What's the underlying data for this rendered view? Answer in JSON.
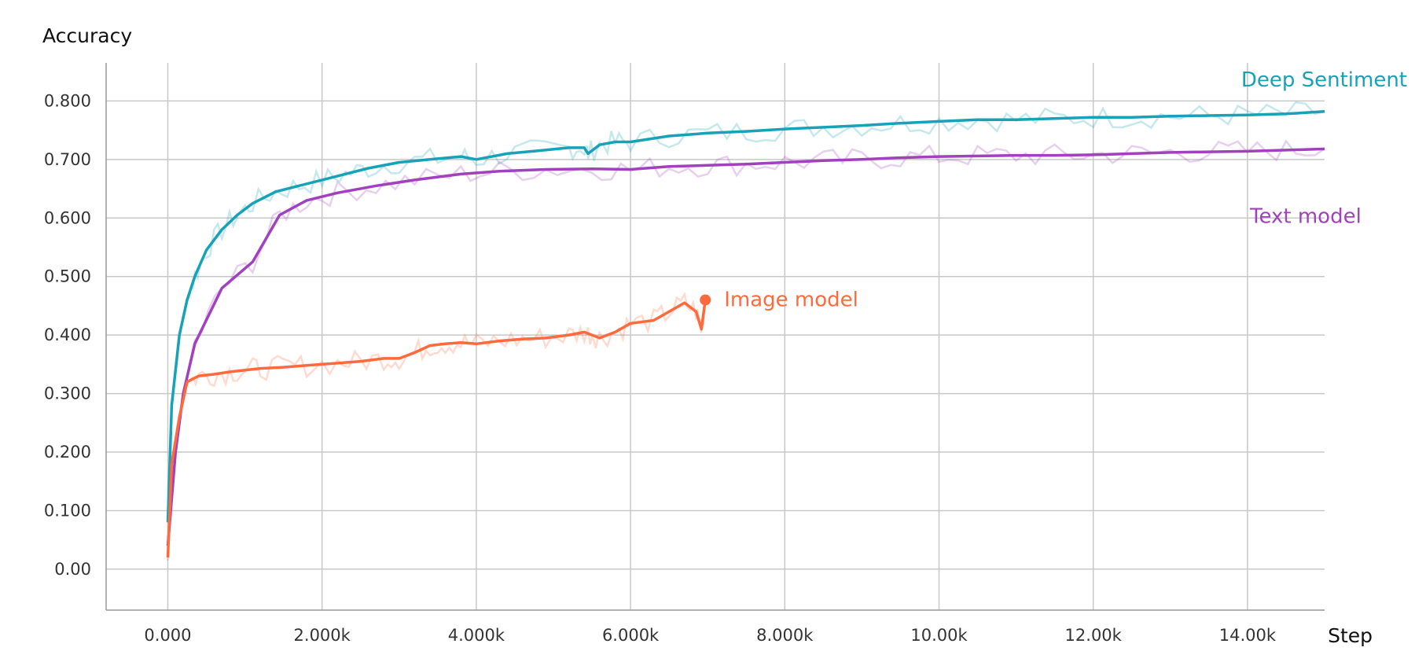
{
  "chart_data": {
    "type": "line",
    "title": "",
    "ylabel": "Accuracy",
    "xlabel": "Step",
    "xlim": [
      -800,
      15000
    ],
    "ylim": [
      -0.07,
      0.865
    ],
    "x_ticks": [
      0,
      2000,
      4000,
      6000,
      8000,
      10000,
      12000,
      14000
    ],
    "x_tick_labels": [
      "0.000",
      "2.000k",
      "4.000k",
      "6.000k",
      "8.000k",
      "10.00k",
      "12.00k",
      "14.00k"
    ],
    "y_ticks": [
      0,
      0.1,
      0.2,
      0.3,
      0.4,
      0.5,
      0.6,
      0.7,
      0.8
    ],
    "y_tick_labels": [
      "0.00",
      "0.100",
      "0.200",
      "0.300",
      "0.400",
      "0.500",
      "0.600",
      "0.700",
      "0.800"
    ],
    "grid": true,
    "legend": "inline-labels",
    "series": [
      {
        "name": "Deep Sentiment",
        "color": "#17a2b8",
        "x": [
          0,
          50,
          150,
          250,
          350,
          500,
          700,
          900,
          1100,
          1400,
          1700,
          2000,
          2300,
          2600,
          3000,
          3400,
          3800,
          4000,
          4400,
          4800,
          5200,
          5400,
          5450,
          5600,
          5800,
          6000,
          6500,
          7000,
          7500,
          8000,
          8500,
          9000,
          9500,
          10000,
          10500,
          11000,
          11500,
          12000,
          12500,
          13000,
          13500,
          14000,
          14500,
          15000
        ],
        "y": [
          0.08,
          0.28,
          0.4,
          0.46,
          0.5,
          0.545,
          0.58,
          0.605,
          0.625,
          0.645,
          0.655,
          0.665,
          0.675,
          0.685,
          0.695,
          0.7,
          0.705,
          0.7,
          0.71,
          0.715,
          0.72,
          0.72,
          0.71,
          0.725,
          0.73,
          0.73,
          0.74,
          0.745,
          0.748,
          0.752,
          0.755,
          0.758,
          0.762,
          0.765,
          0.768,
          0.768,
          0.77,
          0.772,
          0.772,
          0.774,
          0.775,
          0.776,
          0.778,
          0.782
        ]
      },
      {
        "name": "Text model",
        "color": "#a141bd",
        "x": [
          0,
          100,
          200,
          350,
          700,
          1100,
          1450,
          1800,
          2200,
          2700,
          3200,
          3800,
          4300,
          4900,
          5500,
          6000,
          6500,
          7000,
          7500,
          8000,
          8500,
          9000,
          9500,
          10000,
          10500,
          11000,
          11500,
          12000,
          12500,
          13000,
          13500,
          14000,
          14500,
          15000
        ],
        "y": [
          0.04,
          0.2,
          0.3,
          0.385,
          0.48,
          0.525,
          0.605,
          0.63,
          0.643,
          0.655,
          0.665,
          0.675,
          0.68,
          0.683,
          0.684,
          0.683,
          0.688,
          0.69,
          0.692,
          0.695,
          0.698,
          0.7,
          0.703,
          0.705,
          0.706,
          0.707,
          0.707,
          0.708,
          0.71,
          0.712,
          0.713,
          0.714,
          0.716,
          0.718
        ]
      },
      {
        "name": "Image model",
        "color": "#ff6a3d",
        "x": [
          0,
          50,
          150,
          250,
          400,
          600,
          800,
          1000,
          1200,
          1500,
          1800,
          2200,
          2500,
          2800,
          3000,
          3200,
          3400,
          3600,
          3800,
          4000,
          4300,
          4600,
          4900,
          5200,
          5400,
          5500,
          5600,
          5800,
          6000,
          6300,
          6500,
          6700,
          6850,
          6920,
          6970
        ],
        "y": [
          0.02,
          0.18,
          0.26,
          0.32,
          0.33,
          0.333,
          0.337,
          0.34,
          0.343,
          0.345,
          0.348,
          0.352,
          0.355,
          0.36,
          0.36,
          0.37,
          0.382,
          0.385,
          0.387,
          0.385,
          0.39,
          0.393,
          0.395,
          0.4,
          0.405,
          0.4,
          0.395,
          0.405,
          0.42,
          0.425,
          0.44,
          0.455,
          0.44,
          0.41,
          0.46
        ]
      }
    ]
  }
}
